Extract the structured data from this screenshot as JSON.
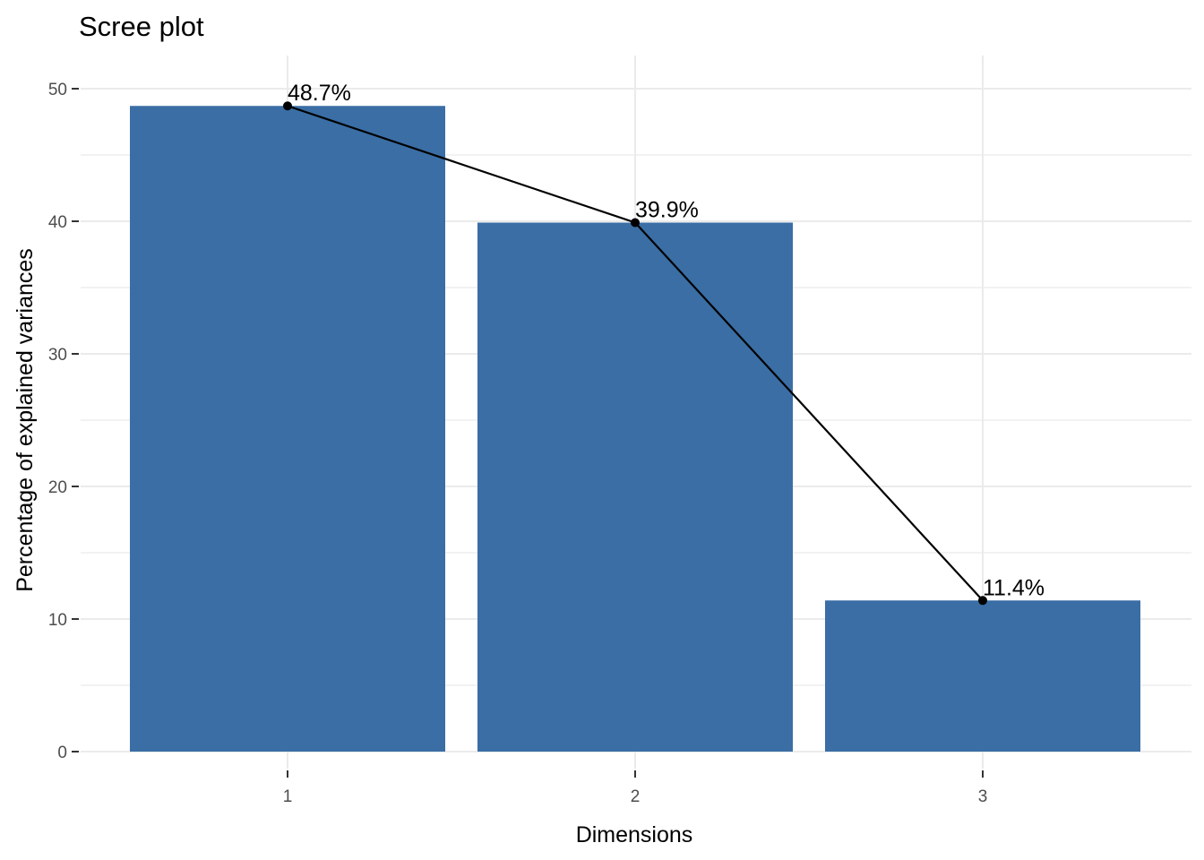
{
  "chart_data": {
    "type": "bar",
    "title": "Scree plot",
    "xlabel": "Dimensions",
    "ylabel": "Percentage of explained variances",
    "categories": [
      "1",
      "2",
      "3"
    ],
    "values": [
      48.7,
      39.9,
      11.4
    ],
    "data_labels": [
      "48.7%",
      "39.9%",
      "11.4%"
    ],
    "ylim": [
      0,
      52
    ],
    "yticks": [
      0,
      10,
      20,
      30,
      40,
      50
    ],
    "yminor_ticks": [
      5,
      15,
      25,
      35,
      45
    ],
    "overlay": "line-with-points",
    "grid": true,
    "legend": "none",
    "colors": {
      "bar": "#3A6EA5",
      "line": "#000000",
      "point": "#000000",
      "grid": "#EBEBEB"
    }
  }
}
